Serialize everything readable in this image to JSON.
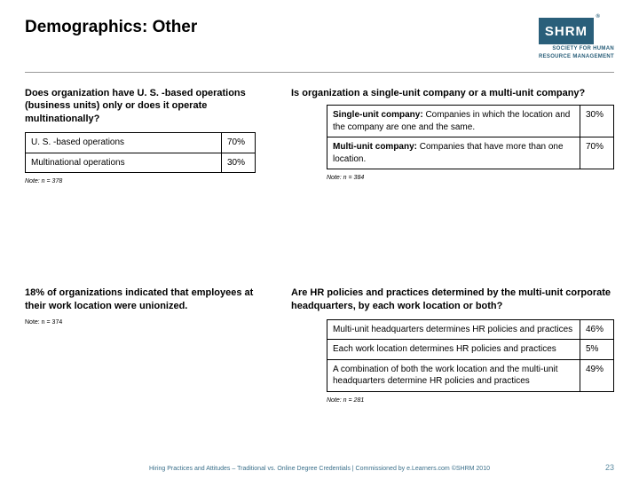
{
  "title": "Demographics: Other",
  "logo": {
    "mark": "SHRM",
    "sub1": "SOCIETY FOR HUMAN",
    "sub2": "RESOURCE MANAGEMENT"
  },
  "q1": {
    "question": "Does organization have U. S. -based operations (business units) only or does it operate multinationally?",
    "rows": [
      {
        "label": "U. S. -based operations",
        "pct": "70%"
      },
      {
        "label": "Multinational operations",
        "pct": "30%"
      }
    ],
    "note": "Note: n = 378"
  },
  "q2": {
    "question": "Is organization a single-unit company or a multi-unit company?",
    "rows": [
      {
        "label_bold": "Single-unit company:",
        "label": " Companies in which the location and the company are one and the same.",
        "pct": "30%"
      },
      {
        "label_bold": "Multi-unit company:",
        "label": " Companies that have more than one location.",
        "pct": "70%"
      }
    ],
    "note": "Note: n = 384"
  },
  "stat": {
    "text": "18% of organizations indicated that employees at their work location were unionized.",
    "note": "Note: n = 374"
  },
  "q3": {
    "question": "Are HR policies and practices determined by the multi-unit corporate headquarters, by each work location or both?",
    "rows": [
      {
        "label": "Multi-unit headquarters determines HR policies and practices",
        "pct": "46%"
      },
      {
        "label": "Each work location determines HR policies and practices",
        "pct": "5%"
      },
      {
        "label": "A combination of both the work location and the multi-unit headquarters determine HR policies and practices",
        "pct": "49%"
      }
    ],
    "note": "Note: n = 281"
  },
  "footer": "Hiring Practices and Attitudes – Traditional vs. Online Degree Credentials | Commissioned by e.Learners.com ©SHRM 2010",
  "page": "23"
}
